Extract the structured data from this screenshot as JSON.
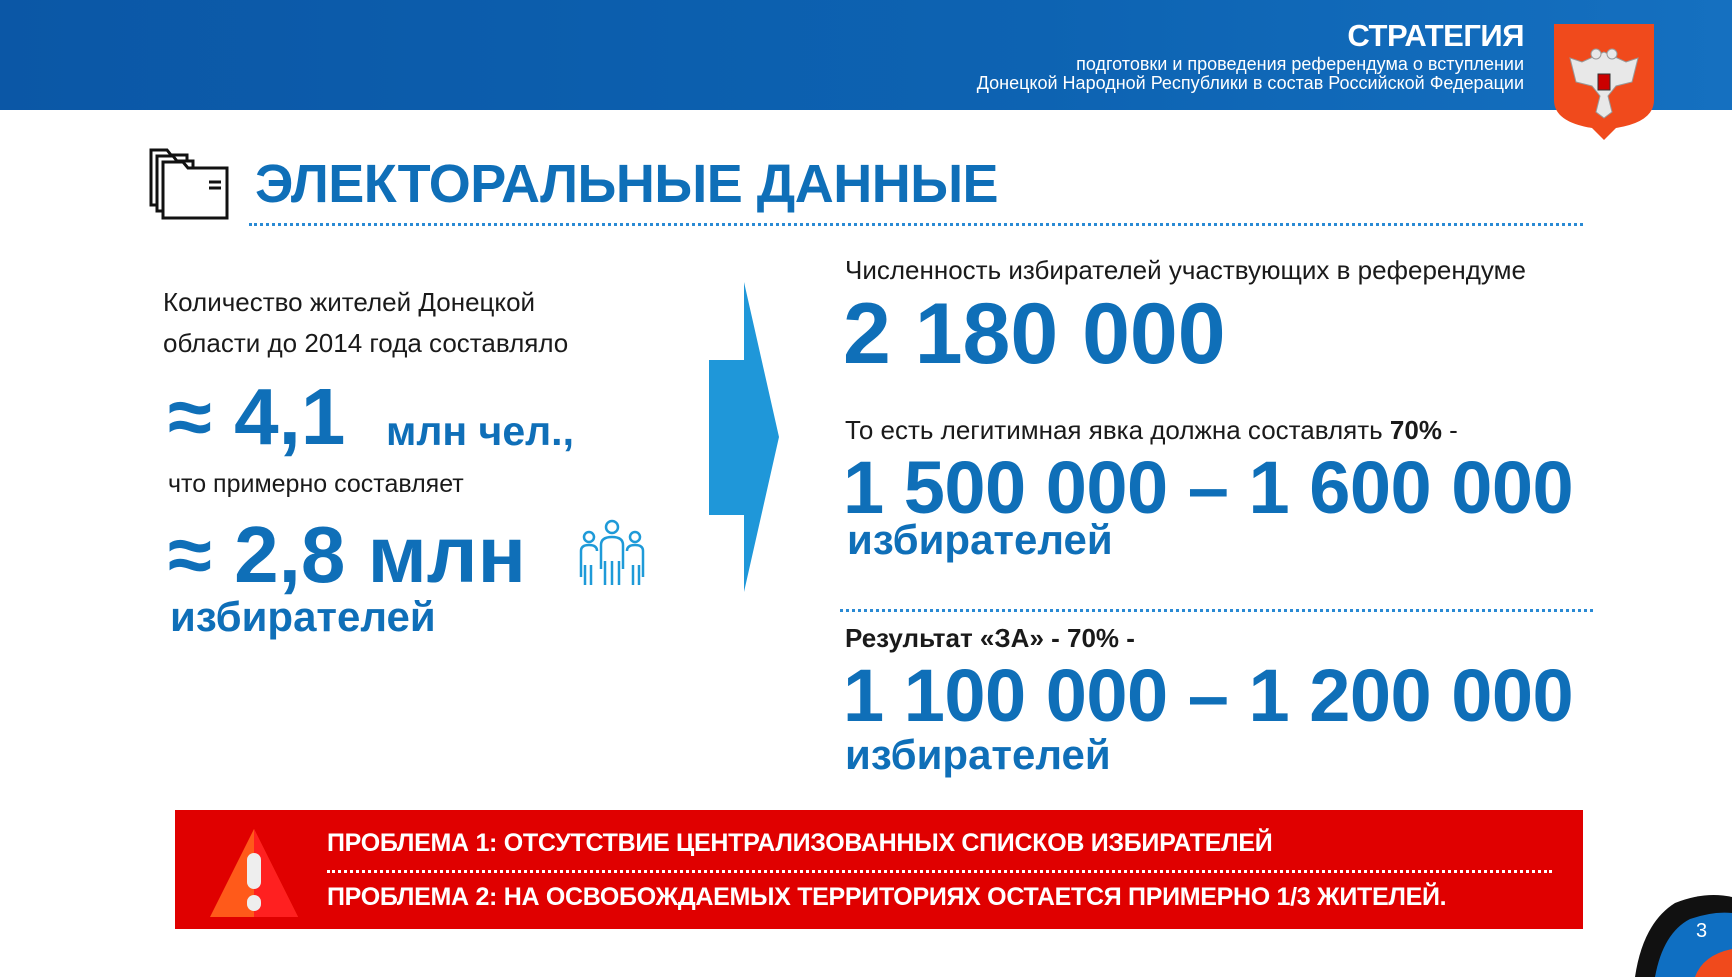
{
  "header": {
    "title": "СТРАТЕГИЯ",
    "subtitle_line1": "подготовки и проведения референдума о вступлении",
    "subtitle_line2": "Донецкой Народной Республики в состав Российской Федерации",
    "emblem": "coat-of-arms-dpr"
  },
  "page_title": "ЭЛЕКТОРАЛЬНЫЕ ДАННЫЕ",
  "left": {
    "intro_line1": "Количество жителей Донецкой",
    "intro_line2": "области до 2014 года составляло",
    "approx1": "≈ 4,1",
    "unit1": "млн чел.,",
    "connector": "что примерно составляет",
    "approx2": "≈ 2,8 млн",
    "unit2": "избирателей"
  },
  "right": {
    "voters_label": "Численность избирателей участвующих в референдуме",
    "voters_value": "2 180 000",
    "turnout_label": "То есть легитимная явка должна составлять ",
    "turnout_pct": "70%",
    "turnout_suffix": " -",
    "turnout_range": "1 500 000 – 1 600 000",
    "turnout_unit": "избирателей",
    "result_label": "Результат «ЗА» - 70% -",
    "result_range": "1 100 000 – 1 200 000",
    "result_unit": "избирателей"
  },
  "warning": {
    "problem1": "ПРОБЛЕМА 1: ОТСУТСТВИЕ ЦЕНТРАЛИЗОВАННЫХ СПИСКОВ ИЗБИРАТЕЛЕЙ",
    "problem2": "ПРОБЛЕМА 2:  НА ОСВОБОЖДАЕМЫХ ТЕРРИТОРИЯХ ОСТАЕТСЯ  ПРИМЕРНО 1/3 ЖИТЕЛЕЙ."
  },
  "page_number": "3",
  "colors": {
    "accent": "#0f6fb8",
    "header": "#0b57a6",
    "warning": "#e00000",
    "arrow": "#1f97d9"
  }
}
